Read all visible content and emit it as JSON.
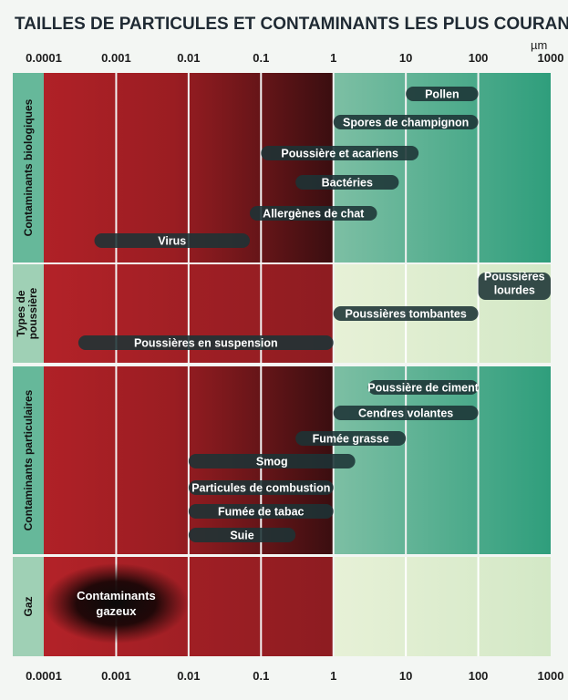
{
  "chart_data": {
    "type": "range-bar",
    "title": "TAILLES DE PARTICULES ET CONTAMINANTS LES PLUS COURANTS",
    "unit": "µm",
    "x_scale": "log",
    "x_ticks": [
      "0.0001",
      "0.001",
      "0.01",
      "0.1",
      "1",
      "10",
      "100",
      "1000"
    ],
    "groups": [
      {
        "name": "Contaminants biologiques",
        "items": [
          {
            "label": "Pollen",
            "min": 10,
            "max": 100
          },
          {
            "label": "Spores de champignon",
            "min": 1,
            "max": 100
          },
          {
            "label": "Poussière et acariens",
            "min": 0.1,
            "max": 15
          },
          {
            "label": "Bactéries",
            "min": 0.3,
            "max": 8
          },
          {
            "label": "Allergènes de chat",
            "min": 0.07,
            "max": 4
          },
          {
            "label": "Virus",
            "min": 0.0005,
            "max": 0.07
          }
        ]
      },
      {
        "name": "Types de poussière",
        "items": [
          {
            "label": "Poussières lourdes",
            "min": 100,
            "max": 1000
          },
          {
            "label": "Poussières tombantes",
            "min": 1,
            "max": 100
          },
          {
            "label": "Poussières en suspension",
            "min": 0.0003,
            "max": 1
          }
        ]
      },
      {
        "name": "Contaminants particulaires",
        "items": [
          {
            "label": "Poussière de ciment",
            "min": 3,
            "max": 100
          },
          {
            "label": "Cendres volantes",
            "min": 1,
            "max": 100
          },
          {
            "label": "Fumée grasse",
            "min": 0.3,
            "max": 10
          },
          {
            "label": "Smog",
            "min": 0.01,
            "max": 2
          },
          {
            "label": "Particules de combustion",
            "min": 0.01,
            "max": 1
          },
          {
            "label": "Fumée de tabac",
            "min": 0.01,
            "max": 1
          },
          {
            "label": "Suie",
            "min": 0.01,
            "max": 0.3
          }
        ]
      },
      {
        "name": "Gaz",
        "items": [
          {
            "label": "Contaminants gazeux",
            "min": 0.0001,
            "max": 0.01
          }
        ]
      }
    ]
  }
}
